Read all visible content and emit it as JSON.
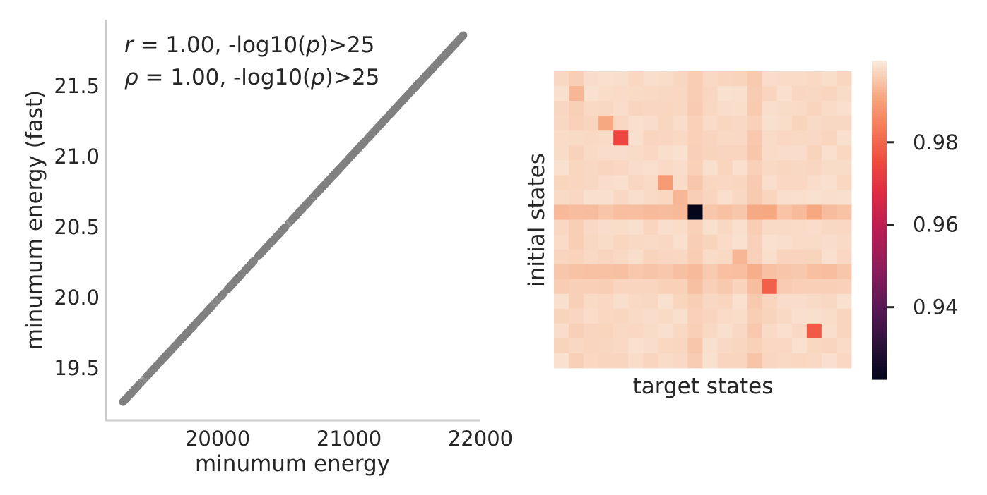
{
  "chart_data": [
    {
      "type": "scatter",
      "xlabel": "minumum energy",
      "ylabel": "minumum energy (fast)",
      "xlim": [
        19150,
        22000
      ],
      "ylim": [
        19.13,
        21.97
      ],
      "xticks": [
        "20000",
        "21000",
        "22000"
      ],
      "xtick_values": [
        20000,
        21000,
        22000
      ],
      "yticks": [
        "19.5",
        "20.0",
        "20.5",
        "21.0",
        "21.5"
      ],
      "ytick_values": [
        19.5,
        20.0,
        20.5,
        21.0,
        21.5
      ],
      "annotations": [
        {
          "prefix": "r",
          "text": " = 1.00, -log10(",
          "italic": "p",
          "suffix": ")>25"
        },
        {
          "prefix": "ρ",
          "text": " = 1.00, -log10(",
          "italic": "p",
          "suffix": ")>25"
        }
      ],
      "point_color": "#808080",
      "range": {
        "x_min": 19280,
        "x_max": 21870,
        "y_min": 19.26,
        "y_max": 21.86
      },
      "point_count": 600,
      "grid": false,
      "legend": "none"
    },
    {
      "type": "heatmap",
      "xlabel": "target states",
      "ylabel": "initial states",
      "rows": 20,
      "cols": 20,
      "base_value": 0.9985,
      "cells": [
        {
          "row": 1,
          "col": 1,
          "value": 0.993
        },
        {
          "row": 3,
          "col": 3,
          "value": 0.991
        },
        {
          "row": 4,
          "col": 4,
          "value": 0.974
        },
        {
          "row": 7,
          "col": 7,
          "value": 0.989
        },
        {
          "row": 8,
          "col": 8,
          "value": 0.993
        },
        {
          "row": 9,
          "col": 9,
          "value": 0.923
        },
        {
          "row": 9,
          "col": 14,
          "value": 0.991
        },
        {
          "row": 9,
          "col": 17,
          "value": 0.991
        },
        {
          "row": 12,
          "col": 12,
          "value": 0.993
        },
        {
          "row": 13,
          "col": 13,
          "value": 0.992
        },
        {
          "row": 14,
          "col": 14,
          "value": 0.979
        },
        {
          "row": 17,
          "col": 17,
          "value": 0.978
        }
      ],
      "row_offsets": [
        {
          "row": 9,
          "value": -0.0035
        },
        {
          "row": 13,
          "value": -0.003
        },
        {
          "row": 14,
          "value": -0.0015
        }
      ],
      "col_offsets": [
        {
          "col": 9,
          "value": -0.002
        },
        {
          "col": 13,
          "value": -0.002
        },
        {
          "col": 1,
          "value": -0.0008
        }
      ],
      "colorbar": {
        "vmin": 0.9225,
        "vmax": 0.9998,
        "ticks": [
          "0.94",
          "0.96",
          "0.98"
        ],
        "tick_values": [
          0.94,
          0.96,
          0.98
        ]
      },
      "colormap": "rocket"
    }
  ]
}
